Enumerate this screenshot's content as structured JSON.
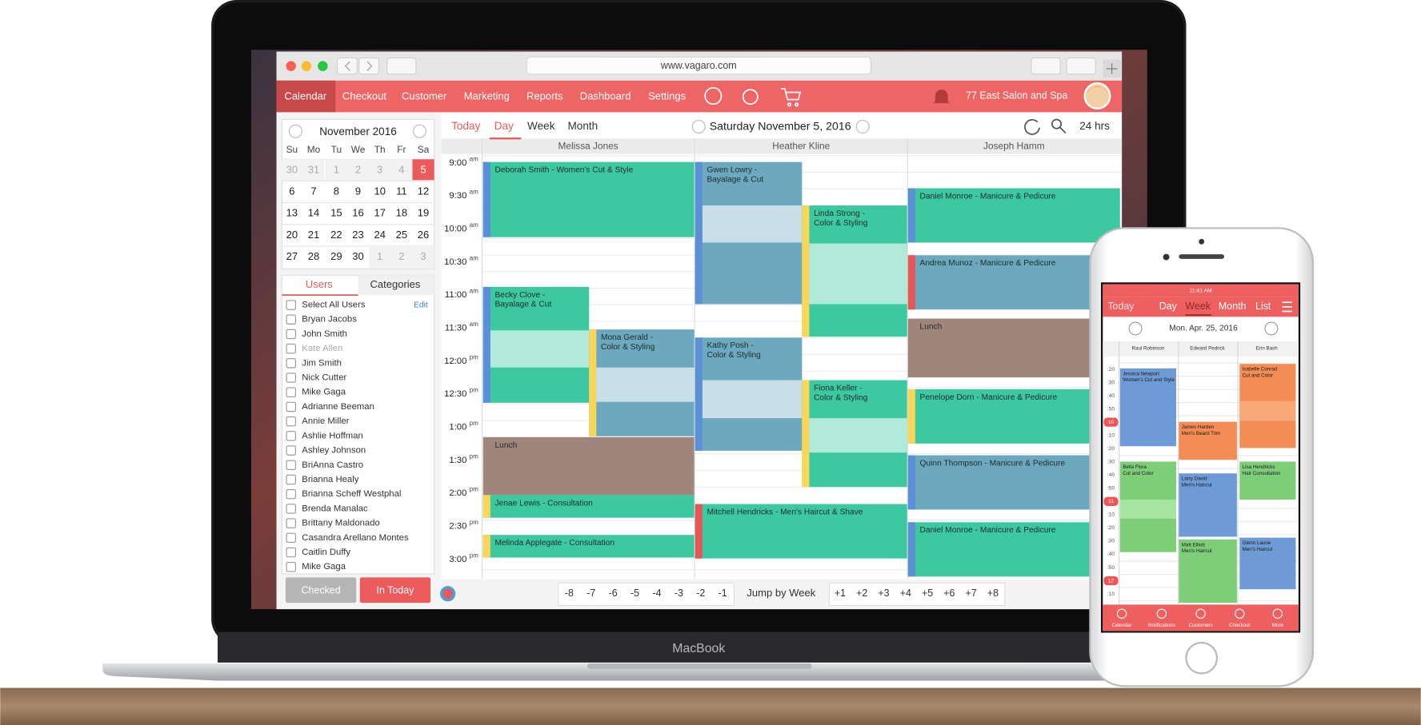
{
  "browser": {
    "url": "www.vagaro.com"
  },
  "nav": {
    "items": [
      "Calendar",
      "Checkout",
      "Customer",
      "Marketing",
      "Reports",
      "Dashboard",
      "Settings"
    ],
    "business": "77 East Salon and Spa"
  },
  "mini_calendar": {
    "title": "November 2016",
    "weekdays": [
      "Su",
      "Mo",
      "Tu",
      "We",
      "Th",
      "Fr",
      "Sa"
    ],
    "weeks": [
      [
        30,
        31,
        1,
        2,
        3,
        4,
        5
      ],
      [
        6,
        7,
        8,
        9,
        10,
        11,
        12
      ],
      [
        13,
        14,
        15,
        16,
        17,
        18,
        19
      ],
      [
        20,
        21,
        22,
        23,
        24,
        25,
        26
      ],
      [
        27,
        28,
        29,
        30,
        1,
        2,
        3
      ]
    ]
  },
  "sidebar": {
    "tabs": [
      "Users",
      "Categories"
    ],
    "select_all": "Select All Users",
    "edit": "Edit",
    "users": [
      "Bryan Jacobs",
      "John Smith",
      "Kate Allen",
      "Jim Smith",
      "Nick Cutter",
      "Mike Gaga",
      "Adrianne Beeman",
      "Annie Miller",
      "Ashlie Hoffman",
      "Ashley Johnson",
      "BriAnna Castro",
      "Brianna Healy",
      "Brianna Scheff Westphal",
      "Brenda Manalac",
      "Brittany Maldonado",
      "Casandra Arellano Montes",
      "Caitlin Duffy",
      "Mike Gaga"
    ],
    "buttons": [
      "Checked",
      "In Today"
    ]
  },
  "toolbar": {
    "views": [
      "Today",
      "Day",
      "Week",
      "Month"
    ],
    "date": "Saturday November 5, 2016",
    "range": "24 hrs"
  },
  "schedule": {
    "staff": [
      "Melissa Jones",
      "Heather Kline",
      "Joseph Hamm"
    ],
    "times": [
      {
        "time": "9:00",
        "period": "am"
      },
      {
        "time": "9:30",
        "period": "am"
      },
      {
        "time": "10:00",
        "period": "am"
      },
      {
        "time": "10:30",
        "period": "am"
      },
      {
        "time": "11:00",
        "period": "am"
      },
      {
        "time": "11:30",
        "period": "am"
      },
      {
        "time": "12:00",
        "period": "pm"
      },
      {
        "time": "12:30",
        "period": "pm"
      },
      {
        "time": "1:00",
        "period": "pm"
      },
      {
        "time": "1:30",
        "period": "pm"
      },
      {
        "time": "2:00",
        "period": "pm"
      },
      {
        "time": "2:30",
        "period": "pm"
      },
      {
        "time": "3:00",
        "period": "pm"
      }
    ],
    "appointments": [
      {
        "lines": [
          "Deborah Smith - Women's Cut & Style"
        ]
      },
      {
        "lines": [
          "Becky Clove -",
          "Bayalage & Cut"
        ]
      },
      {
        "lines": [
          "Mona Gerald -",
          "Color & Styling"
        ]
      },
      {
        "lines": [
          "Lunch"
        ]
      },
      {
        "lines": [
          "Jenae Lewis - Consultation"
        ]
      },
      {
        "lines": [
          "Melinda Applegate - Consultation"
        ]
      },
      {
        "lines": [
          "Gwen Lowry -",
          "Bayalage & Cut"
        ]
      },
      {
        "lines": [
          "Linda Strong -",
          "Color & Styling"
        ]
      },
      {
        "lines": [
          "Kathy Posh -",
          "Color & Styling"
        ]
      },
      {
        "lines": [
          "Fiona Keller -",
          "Color & Styling"
        ]
      },
      {
        "lines": [
          "Mitchell Hendricks - Men's Haircut & Shave"
        ]
      },
      {
        "lines": [
          "Daniel Monroe - Manicure & Pedicure"
        ]
      },
      {
        "lines": [
          "Andrea Munoz - Manicure & Pedicure"
        ]
      },
      {
        "lines": [
          "Lunch"
        ]
      },
      {
        "lines": [
          "Penelope Dorn - Manicure & Pedicure"
        ]
      },
      {
        "lines": [
          "Quinn Thompson - Manicure & Pedicure"
        ]
      },
      {
        "lines": [
          "Daniel Monroe - Manicure & Pedicure"
        ]
      }
    ]
  },
  "jump": {
    "back": [
      "-8",
      "-7",
      "-6",
      "-5",
      "-4",
      "-3",
      "-2",
      "-1"
    ],
    "label": "Jump by Week",
    "forward": [
      "+1",
      "+2",
      "+3",
      "+4",
      "+5",
      "+6",
      "+7",
      "+8"
    ]
  },
  "device_label": "MacBook",
  "phone": {
    "status_time": "11:41 AM",
    "views": [
      "Today",
      "Day",
      "Week",
      "Month",
      "List"
    ],
    "date": "Mon. Apr. 25, 2016",
    "staff": [
      "Raul Robinson",
      "Edward Pedrick",
      "Erin Bash"
    ],
    "times": [
      ":20",
      ":30",
      ":40",
      ":50",
      "10",
      ":10",
      ":20",
      ":30",
      ":40",
      ":50",
      "11",
      ":10",
      ":20",
      ":30",
      ":40",
      ":50",
      "12",
      ":10",
      ":20"
    ],
    "appointments": [
      {
        "name": "Jessica Newport",
        "service": "Women's Cut and Style"
      },
      {
        "name": "Bella Flora",
        "service": "Cut and Color"
      },
      {
        "name": "James Harden",
        "service": "Men's Beard Trim"
      },
      {
        "name": "Larry David",
        "service": "Men's Haircut"
      },
      {
        "name": "Matt Elliott",
        "service": "Men's Haircut"
      },
      {
        "name": "Isabelle Conrad",
        "service": "Cut and Color"
      },
      {
        "name": "Lisa Hendricks",
        "service": "Hair Consultation"
      },
      {
        "name": "Glenn Laurie",
        "service": "Men's Haircut"
      }
    ],
    "tabs": [
      "Calendar",
      "Notifications",
      "Customers",
      "Checkout",
      "More"
    ]
  }
}
